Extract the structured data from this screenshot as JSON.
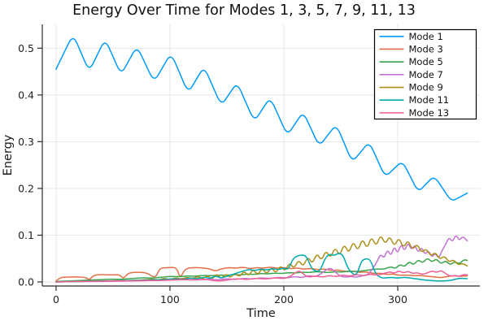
{
  "chart_data": {
    "type": "line",
    "title": "Energy Over Time for Modes 1, 3, 5, 7, 9, 11, 13",
    "xlabel": "Time",
    "ylabel": "Energy",
    "xlim": [
      -12.1,
      372.1
    ],
    "ylim": [
      -0.0087,
      0.551
    ],
    "xticks": [
      0,
      100,
      200,
      300
    ],
    "xtick_labels": [
      "0",
      "100",
      "200",
      "300"
    ],
    "yticks": [
      0,
      0.1,
      0.2,
      0.3,
      0.4,
      0.5
    ],
    "ytick_labels": [
      "0.0",
      "0.1",
      "0.2",
      "0.3",
      "0.4",
      "0.5"
    ],
    "grid": true,
    "legend_position": "top-right",
    "background_color": "#FFFFFF",
    "gridline_color": "#E5E5E5",
    "axis_color": "#2C2C2C",
    "series": [
      {
        "name": "Mode 1",
        "color": "#009AFA",
        "t": [
          0,
          7.5,
          15,
          22,
          29,
          36,
          43,
          50,
          57,
          64,
          71,
          78.5,
          86,
          93.5,
          101,
          108.5,
          116,
          123,
          130,
          137.5,
          145,
          152,
          159,
          166.5,
          174,
          181,
          188,
          195.5,
          203,
          210,
          217,
          224,
          231,
          238.5,
          246,
          253,
          260,
          267.5,
          275,
          282,
          289,
          296.5,
          304,
          311,
          318,
          325,
          332,
          339.5,
          347,
          354,
          361
        ],
        "e": [
          0.455,
          0.493,
          0.53,
          0.49,
          0.45,
          0.485,
          0.52,
          0.482,
          0.443,
          0.474,
          0.505,
          0.466,
          0.427,
          0.459,
          0.49,
          0.447,
          0.404,
          0.433,
          0.461,
          0.419,
          0.377,
          0.402,
          0.427,
          0.385,
          0.343,
          0.369,
          0.395,
          0.354,
          0.313,
          0.339,
          0.364,
          0.327,
          0.29,
          0.314,
          0.337,
          0.297,
          0.256,
          0.278,
          0.3,
          0.262,
          0.224,
          0.242,
          0.259,
          0.226,
          0.192,
          0.21,
          0.227,
          0.2,
          0.172,
          0.181,
          0.19
        ]
      },
      {
        "name": "Mode 3",
        "color": "#E36F47",
        "t": [
          0,
          3,
          6,
          15,
          26,
          29,
          33,
          38,
          48,
          56,
          59,
          63,
          70,
          80,
          87,
          91,
          95,
          101,
          106,
          109,
          113,
          120,
          128,
          135,
          140,
          145,
          152,
          158,
          164,
          170,
          176,
          182,
          188,
          194,
          200,
          206,
          212,
          218,
          224,
          230,
          236,
          242,
          248,
          254,
          260,
          266,
          272,
          278,
          284,
          290,
          296,
          302,
          308,
          314,
          320,
          326,
          332,
          338,
          344,
          350,
          355,
          361
        ],
        "e": [
          0.002,
          0.008,
          0.01,
          0.011,
          0.01,
          0.004,
          0.014,
          0.016,
          0.015,
          0.016,
          0.006,
          0.019,
          0.021,
          0.02,
          0.007,
          0.029,
          0.03,
          0.031,
          0.03,
          0.007,
          0.028,
          0.031,
          0.03,
          0.028,
          0.023,
          0.028,
          0.031,
          0.029,
          0.032,
          0.028,
          0.031,
          0.029,
          0.032,
          0.029,
          0.031,
          0.028,
          0.03,
          0.027,
          0.029,
          0.026,
          0.028,
          0.024,
          0.026,
          0.022,
          0.024,
          0.02,
          0.022,
          0.018,
          0.019,
          0.016,
          0.017,
          0.014,
          0.015,
          0.013,
          0.014,
          0.012,
          0.011,
          0.009,
          0.012,
          0.013,
          0.012,
          0.013
        ]
      },
      {
        "name": "Mode 5",
        "color": "#3DA44E",
        "t": [
          0,
          10,
          20,
          30,
          40,
          50,
          57,
          63,
          70,
          78,
          85,
          92,
          100,
          108,
          115,
          122,
          130,
          137,
          144,
          150,
          156,
          162,
          168,
          174,
          180,
          186,
          192,
          198,
          204,
          210,
          216,
          222,
          228,
          234,
          240,
          246,
          252,
          258,
          264,
          270,
          276,
          282,
          288,
          294,
          298,
          302,
          306,
          310,
          314,
          318,
          322,
          326,
          330,
          334,
          338,
          342,
          346,
          350,
          354,
          358,
          361
        ],
        "e": [
          0.001,
          0.002,
          0.003,
          0.004,
          0.005,
          0.006,
          0.005,
          0.007,
          0.008,
          0.009,
          0.008,
          0.01,
          0.012,
          0.011,
          0.013,
          0.012,
          0.014,
          0.013,
          0.015,
          0.014,
          0.016,
          0.015,
          0.017,
          0.016,
          0.018,
          0.017,
          0.019,
          0.018,
          0.02,
          0.019,
          0.021,
          0.02,
          0.022,
          0.021,
          0.02,
          0.022,
          0.021,
          0.023,
          0.022,
          0.024,
          0.026,
          0.028,
          0.027,
          0.033,
          0.028,
          0.038,
          0.032,
          0.044,
          0.036,
          0.048,
          0.04,
          0.052,
          0.042,
          0.05,
          0.038,
          0.046,
          0.036,
          0.044,
          0.038,
          0.048,
          0.046
        ]
      },
      {
        "name": "Mode 7",
        "color": "#C371D2",
        "t": [
          0,
          20,
          40,
          60,
          80,
          100,
          115,
          125,
          135,
          142,
          150,
          158,
          165,
          172,
          180,
          188,
          196,
          203,
          210,
          216,
          222,
          228,
          233,
          237,
          241,
          245,
          249,
          254,
          259,
          264,
          269,
          274,
          278,
          282,
          285,
          288,
          291,
          294,
          297,
          300,
          303,
          306,
          309,
          312,
          315,
          318,
          321,
          324,
          327,
          330,
          333,
          336,
          339,
          342,
          345,
          348,
          351,
          354,
          357,
          361
        ],
        "e": [
          0.0,
          0.001,
          0.001,
          0.002,
          0.003,
          0.004,
          0.005,
          0.004,
          0.006,
          0.004,
          0.007,
          0.005,
          0.008,
          0.006,
          0.009,
          0.007,
          0.01,
          0.008,
          0.012,
          0.009,
          0.014,
          0.011,
          0.018,
          0.026,
          0.03,
          0.022,
          0.013,
          0.01,
          0.012,
          0.01,
          0.013,
          0.016,
          0.028,
          0.044,
          0.06,
          0.05,
          0.07,
          0.055,
          0.077,
          0.06,
          0.082,
          0.065,
          0.085,
          0.068,
          0.08,
          0.062,
          0.075,
          0.058,
          0.068,
          0.052,
          0.062,
          0.05,
          0.068,
          0.08,
          0.096,
          0.085,
          0.102,
          0.088,
          0.098,
          0.088
        ]
      },
      {
        "name": "Mode 9",
        "color": "#AC8E18",
        "t": [
          0,
          20,
          40,
          60,
          75,
          85,
          90,
          95,
          100,
          105,
          110,
          115,
          120,
          125,
          129,
          133,
          137,
          141,
          145,
          149,
          153,
          157,
          161,
          165,
          169,
          173,
          177,
          181,
          185,
          189,
          193,
          197,
          201,
          205,
          209,
          213,
          217,
          221,
          225,
          229,
          233,
          237,
          241,
          245,
          249,
          253,
          257,
          261,
          265,
          269,
          273,
          277,
          281,
          285,
          289,
          293,
          297,
          301,
          305,
          309,
          313,
          317,
          321,
          325,
          329,
          333,
          337,
          341,
          345,
          349,
          353,
          357,
          361
        ],
        "e": [
          0.0,
          0.001,
          0.002,
          0.003,
          0.004,
          0.006,
          0.004,
          0.008,
          0.005,
          0.009,
          0.006,
          0.01,
          0.007,
          0.012,
          0.006,
          0.014,
          0.005,
          0.018,
          0.006,
          0.018,
          0.008,
          0.02,
          0.01,
          0.024,
          0.012,
          0.028,
          0.014,
          0.03,
          0.016,
          0.032,
          0.018,
          0.036,
          0.022,
          0.042,
          0.028,
          0.048,
          0.032,
          0.055,
          0.038,
          0.062,
          0.045,
          0.068,
          0.05,
          0.075,
          0.055,
          0.082,
          0.06,
          0.088,
          0.065,
          0.094,
          0.07,
          0.098,
          0.075,
          0.102,
          0.08,
          0.099,
          0.075,
          0.096,
          0.072,
          0.09,
          0.068,
          0.082,
          0.062,
          0.072,
          0.055,
          0.064,
          0.048,
          0.056,
          0.042,
          0.048,
          0.036,
          0.04,
          0.034
        ]
      },
      {
        "name": "Mode 11",
        "color": "#00AAAE",
        "t": [
          0,
          20,
          40,
          60,
          80,
          95,
          105,
          112,
          118,
          124,
          130,
          135,
          140,
          145,
          150,
          155,
          160,
          165,
          170,
          175,
          180,
          185,
          190,
          195,
          200,
          204,
          208,
          212,
          216,
          220,
          224,
          228,
          232,
          236,
          240,
          244,
          248,
          252,
          256,
          260,
          264,
          268,
          272,
          276,
          280,
          284,
          288,
          294,
          300,
          306,
          312,
          318,
          324,
          330,
          336,
          342,
          348,
          354,
          361
        ],
        "e": [
          0.0,
          0.001,
          0.002,
          0.003,
          0.004,
          0.005,
          0.007,
          0.005,
          0.009,
          0.006,
          0.011,
          0.007,
          0.013,
          0.008,
          0.012,
          0.016,
          0.02,
          0.024,
          0.027,
          0.024,
          0.028,
          0.025,
          0.029,
          0.026,
          0.03,
          0.026,
          0.05,
          0.056,
          0.058,
          0.055,
          0.03,
          0.022,
          0.024,
          0.05,
          0.06,
          0.056,
          0.062,
          0.058,
          0.03,
          0.018,
          0.014,
          0.045,
          0.05,
          0.048,
          0.02,
          0.01,
          0.008,
          0.01,
          0.008,
          0.01,
          0.008,
          0.006,
          0.004,
          0.003,
          0.002,
          0.002,
          0.004,
          0.008,
          0.007
        ]
      },
      {
        "name": "Mode 13",
        "color": "#ED5E93",
        "t": [
          0,
          15,
          30,
          45,
          60,
          75,
          90,
          100,
          110,
          120,
          130,
          138,
          145,
          152,
          160,
          168,
          176,
          184,
          192,
          200,
          206,
          210,
          214,
          218,
          222,
          228,
          234,
          240,
          246,
          252,
          258,
          264,
          270,
          276,
          282,
          288,
          293,
          297,
          301,
          305,
          309,
          313,
          317,
          321,
          325,
          330,
          334,
          338,
          342,
          346,
          350,
          354,
          358,
          361
        ],
        "e": [
          0.0,
          0.001,
          0.001,
          0.002,
          0.002,
          0.003,
          0.003,
          0.004,
          0.005,
          0.004,
          0.006,
          0.003,
          0.002,
          0.005,
          0.007,
          0.005,
          0.008,
          0.006,
          0.009,
          0.007,
          0.012,
          0.02,
          0.024,
          0.015,
          0.01,
          0.013,
          0.01,
          0.014,
          0.011,
          0.015,
          0.012,
          0.016,
          0.013,
          0.017,
          0.014,
          0.018,
          0.022,
          0.018,
          0.024,
          0.019,
          0.023,
          0.018,
          0.02,
          0.016,
          0.018,
          0.024,
          0.02,
          0.025,
          0.018,
          0.012,
          0.014,
          0.012,
          0.016,
          0.015
        ]
      }
    ]
  }
}
